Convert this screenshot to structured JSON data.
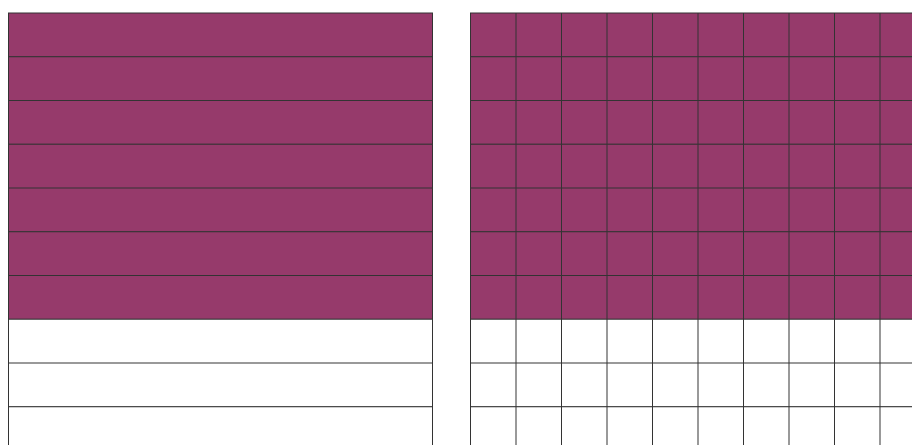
{
  "left_model": {
    "rows": 10,
    "shaded_rows": 7,
    "color": "#963a6b"
  },
  "right_model": {
    "rows": 10,
    "columns": 10,
    "shaded_rows": 7,
    "color": "#963a6b"
  }
}
